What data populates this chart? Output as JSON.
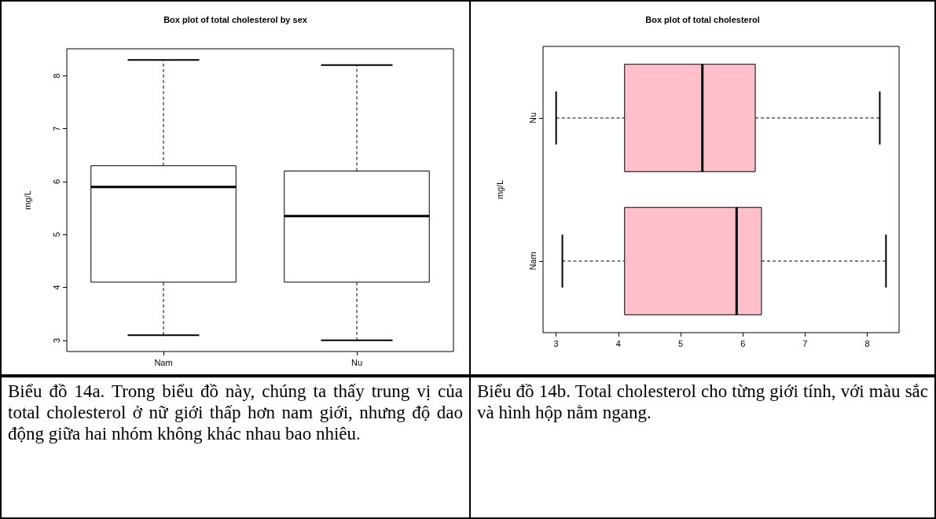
{
  "chart_data": [
    {
      "type": "box",
      "title": "Box plot of total cholesterol by sex",
      "ylabel": "mg/L",
      "categories": [
        "Nam",
        "Nu"
      ],
      "color": "#ffffff",
      "boxes": [
        {
          "low": 3.1,
          "q1": 4.1,
          "median": 5.9,
          "q3": 6.3,
          "high": 8.3
        },
        {
          "low": 3.0,
          "q1": 4.1,
          "median": 5.35,
          "q3": 6.2,
          "high": 8.2
        }
      ],
      "ylim": [
        2.79,
        8.51
      ],
      "yticks": [
        3,
        4,
        5,
        6,
        7,
        8
      ],
      "grid": false,
      "annotations": [
        "Biểu đồ 14a. Trong biểu đồ này, chúng ta thấy trung vị của total cholesterol ở nữ giới thấp hơn nam giới, nhưng độ dao động giữa hai nhóm không khác nhau bao nhiêu."
      ]
    },
    {
      "type": "box",
      "title": "Box plot of total cholesterol",
      "ylabel": "mg/L",
      "orientation": "horizontal",
      "categories": [
        "Nu",
        "Nam"
      ],
      "color": "#ffc0cb",
      "boxes": [
        {
          "low": 3.0,
          "q1": 4.1,
          "median": 5.35,
          "q3": 6.2,
          "high": 8.2
        },
        {
          "low": 3.1,
          "q1": 4.1,
          "median": 5.9,
          "q3": 6.3,
          "high": 8.3
        }
      ],
      "xlim": [
        2.79,
        8.51
      ],
      "xticks": [
        3,
        4,
        5,
        6,
        7,
        8
      ],
      "grid": false,
      "annotations": [
        "Biểu đồ 14b. Total cholesterol cho từng giới tính, với màu sắc và hình hộp nằm ngang."
      ]
    }
  ]
}
